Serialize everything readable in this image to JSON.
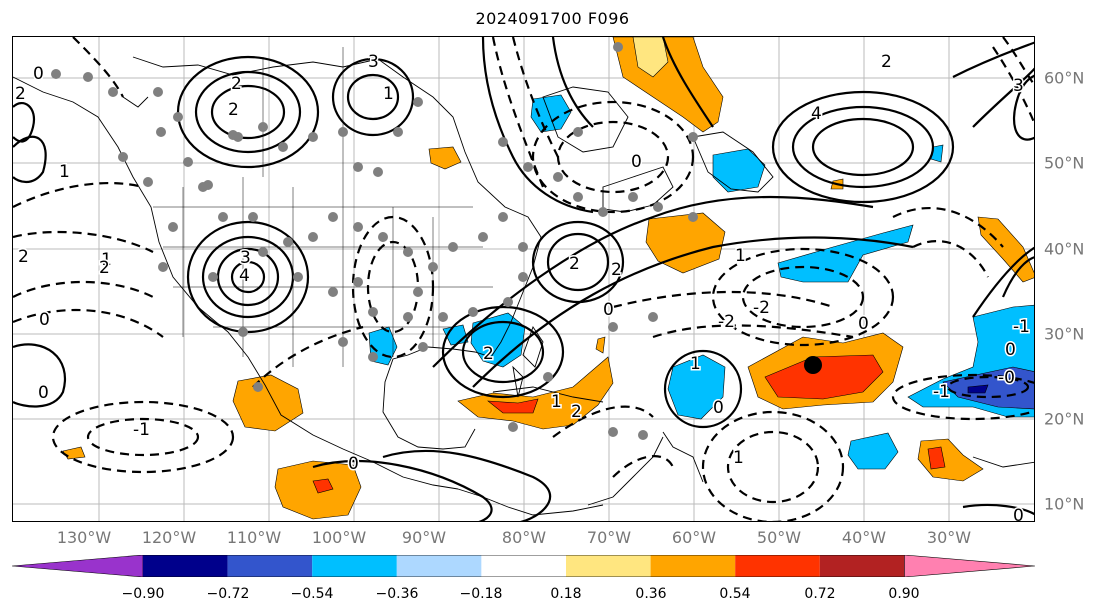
{
  "title": "2024091700 F096",
  "axes": {
    "lon_labels": [
      "130°W",
      "120°W",
      "110°W",
      "100°W",
      "90°W",
      "80°W",
      "70°W",
      "60°W",
      "50°W",
      "40°W",
      "30°W"
    ],
    "lat_labels": [
      "60°N",
      "50°N",
      "40°N",
      "30°N",
      "20°N",
      "10°N"
    ]
  },
  "contour_labels": [
    "2",
    "3",
    "2",
    "1",
    "2",
    "4",
    "2",
    "0",
    "1",
    "2",
    "1",
    "3",
    "4",
    "0",
    "2",
    "-2",
    "0",
    "0",
    "0",
    "-1",
    "-0",
    "-1",
    "1",
    "2",
    "0",
    "2",
    "0",
    "-2",
    "1",
    "-1",
    "2",
    "0",
    "0",
    "1",
    "2",
    "1",
    "3",
    "0"
  ],
  "colorbar": {
    "ticks": [
      "−0.90",
      "−0.72",
      "−0.54",
      "−0.36",
      "−0.18",
      "0.18",
      "0.36",
      "0.54",
      "0.72",
      "0.90"
    ],
    "colors": [
      "#9933cc",
      "#00008b",
      "#3355cc",
      "#00bfff",
      "#add8ff",
      "#ffffff",
      "#ffe680",
      "#ffa500",
      "#ff3300",
      "#b22222",
      "#ff80b0"
    ]
  },
  "fill_colors": {
    "light_blue": "#00bfff",
    "mid_blue": "#3355cc",
    "dark_blue": "#00008b",
    "orange": "#ffa500",
    "red_orange": "#ff3300",
    "dark_red": "#b22222",
    "grid": "#bbbbbb",
    "dots": "#808080"
  }
}
